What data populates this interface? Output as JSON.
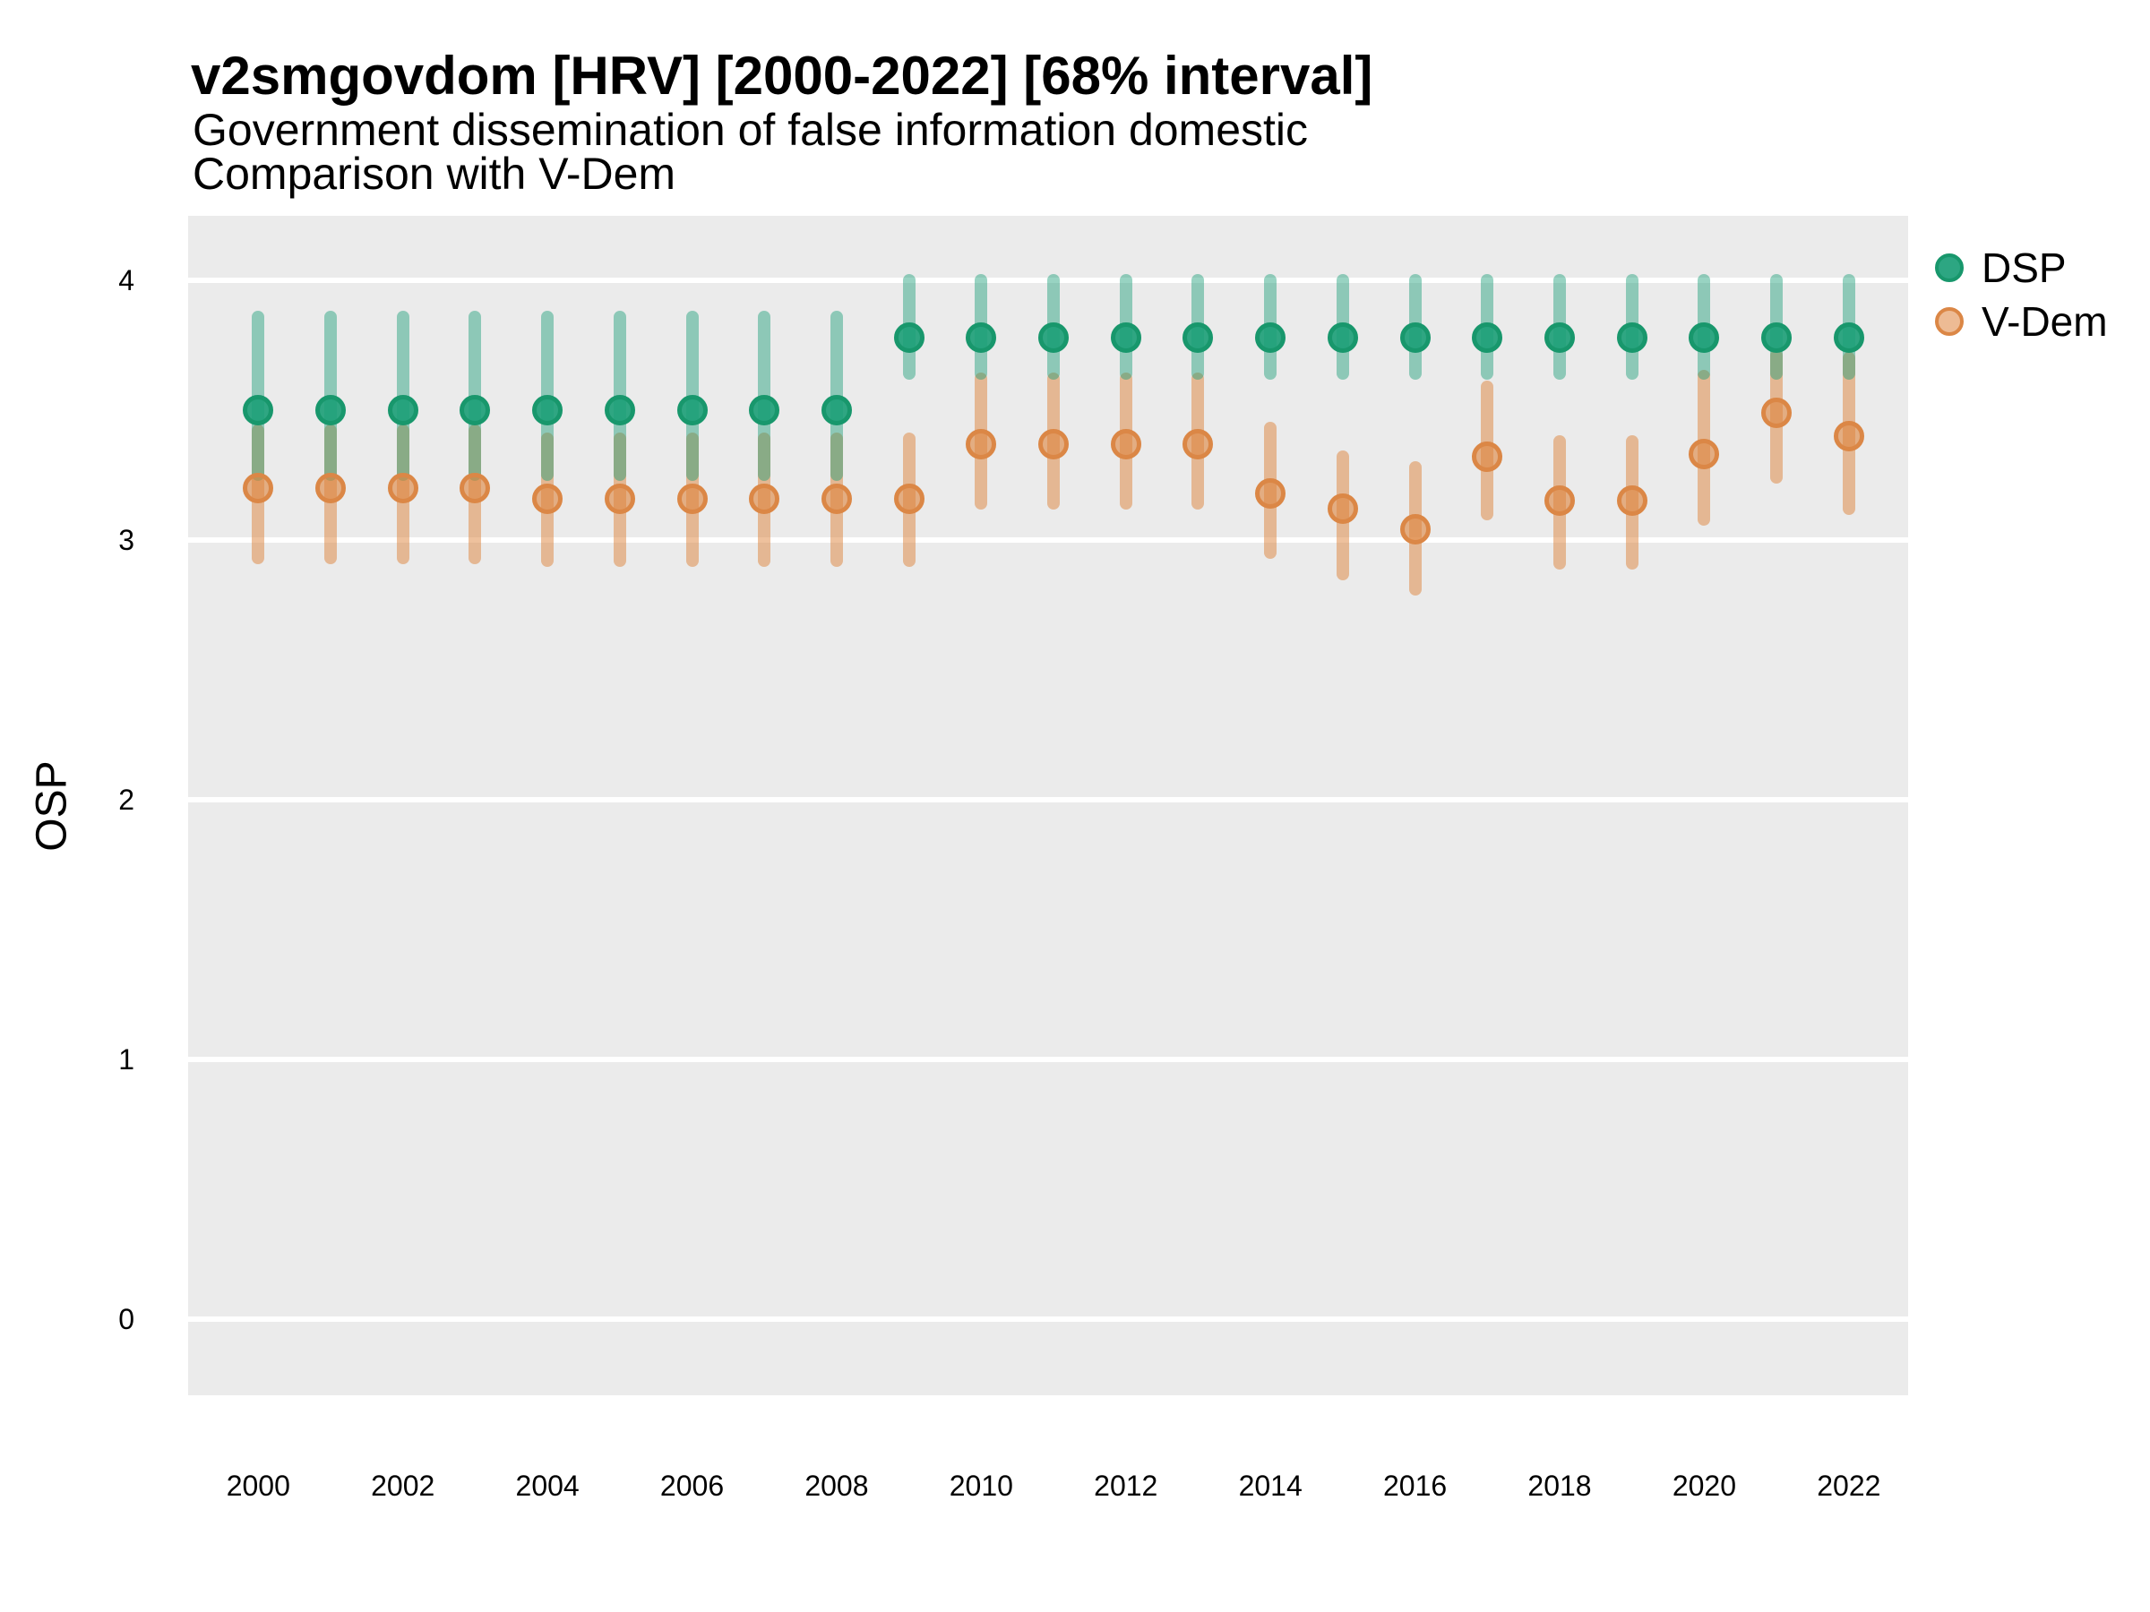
{
  "title": "v2smgovdom [HRV] [2000-2022] [68% interval]",
  "subtitle": {
    "line1": "Government dissemination of false information domestic",
    "line2": "Comparison with V-Dem"
  },
  "y_axis": {
    "label": "OSP",
    "ticks": [
      "0",
      "1",
      "2",
      "3",
      "4"
    ]
  },
  "x_axis": {
    "ticks": [
      "2000",
      "2002",
      "2004",
      "2006",
      "2008",
      "2010",
      "2012",
      "2014",
      "2016",
      "2018",
      "2020",
      "2022"
    ]
  },
  "legend": {
    "items": [
      {
        "label": "DSP",
        "color": "#1B9E77"
      },
      {
        "label": "V-Dem",
        "color": "#DE843C"
      }
    ]
  },
  "colors": {
    "panel_background": "#EBEBEB",
    "gridline": "#FFFFFF",
    "dsp_base": "#1B9E77",
    "vdem_base": "#DE843C"
  },
  "chart_data": {
    "type": "pointrange",
    "title": "v2smgovdom [HRV] [2000-2022] [68% interval]",
    "subtitle": "Government dissemination of false information domestic / Comparison with V-Dem",
    "interval": "68%",
    "xlabel": "",
    "ylabel": "OSP",
    "grid": "horizontal-major-only",
    "legend_position": "right-top",
    "xlim": [
      1999.03,
      2022.82
    ],
    "ylim": [
      -0.293,
      4.248
    ],
    "x_gridlines_values": [
      0,
      1,
      2,
      3,
      4
    ],
    "x": [
      2000,
      2001,
      2002,
      2003,
      2004,
      2005,
      2006,
      2007,
      2008,
      2009,
      2010,
      2011,
      2012,
      2013,
      2014,
      2015,
      2016,
      2017,
      2018,
      2019,
      2020,
      2021,
      2022
    ],
    "series": [
      {
        "name": "DSP",
        "values": [
          3.5,
          3.5,
          3.5,
          3.5,
          3.5,
          3.5,
          3.5,
          3.5,
          3.5,
          3.78,
          3.78,
          3.78,
          3.78,
          3.78,
          3.78,
          3.78,
          3.78,
          3.78,
          3.78,
          3.78,
          3.78,
          3.78,
          3.78
        ],
        "lower": [
          3.25,
          3.25,
          3.25,
          3.25,
          3.25,
          3.25,
          3.25,
          3.25,
          3.25,
          3.64,
          3.64,
          3.64,
          3.64,
          3.64,
          3.64,
          3.64,
          3.64,
          3.64,
          3.64,
          3.64,
          3.64,
          3.64,
          3.64
        ],
        "upper": [
          3.86,
          3.86,
          3.86,
          3.86,
          3.86,
          3.86,
          3.86,
          3.86,
          3.86,
          4.0,
          4.0,
          4.0,
          4.0,
          4.0,
          4.0,
          4.0,
          4.0,
          4.0,
          4.0,
          4.0,
          4.0,
          4.0,
          4.0
        ]
      },
      {
        "name": "V-Dem",
        "values": [
          3.2,
          3.2,
          3.2,
          3.2,
          3.16,
          3.16,
          3.16,
          3.16,
          3.16,
          3.16,
          3.37,
          3.37,
          3.37,
          3.37,
          3.18,
          3.12,
          3.04,
          3.32,
          3.15,
          3.15,
          3.33,
          3.49,
          3.4
        ],
        "lower": [
          2.93,
          2.93,
          2.93,
          2.93,
          2.92,
          2.92,
          2.92,
          2.92,
          2.92,
          2.92,
          3.14,
          3.14,
          3.14,
          3.14,
          2.95,
          2.87,
          2.81,
          3.1,
          2.91,
          2.91,
          3.08,
          3.24,
          3.12
        ],
        "upper": [
          3.42,
          3.42,
          3.42,
          3.42,
          3.39,
          3.39,
          3.39,
          3.39,
          3.39,
          3.39,
          3.62,
          3.62,
          3.62,
          3.62,
          3.43,
          3.32,
          3.28,
          3.59,
          3.38,
          3.38,
          3.63,
          3.71,
          3.7
        ]
      }
    ]
  }
}
